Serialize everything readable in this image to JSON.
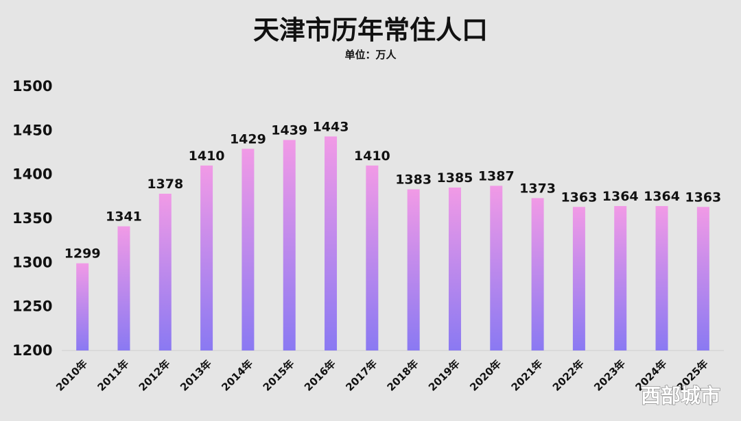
{
  "chart_data": {
    "type": "bar",
    "title": "天津市历年常住人口",
    "subtitle": "单位：万人",
    "categories": [
      "2010年",
      "2011年",
      "2012年",
      "2013年",
      "2014年",
      "2015年",
      "2016年",
      "2017年",
      "2018年",
      "2019年",
      "2020年",
      "2021年",
      "2022年",
      "2023年",
      "2024年",
      "2025年"
    ],
    "values": [
      1299,
      1341,
      1378,
      1410,
      1429,
      1439,
      1443,
      1410,
      1383,
      1385,
      1387,
      1373,
      1363,
      1364,
      1364,
      1363
    ],
    "data_labels": [
      "1299",
      "1341",
      "1378",
      "1410",
      "1429",
      "1439",
      "1443",
      "1410",
      "1383",
      "1385",
      "1387",
      "1373",
      "1363",
      "1364",
      "1364",
      "1363"
    ],
    "ylim": [
      1200,
      1500
    ],
    "yticks": [
      1500,
      1450,
      1400,
      1350,
      1300,
      1250,
      1200
    ],
    "ytick_labels": [
      "1500",
      "1450",
      "1400",
      "1350",
      "1300",
      "1250",
      "1200"
    ],
    "grid": false,
    "legend": "none",
    "colors": {
      "bar_top": "#f19ae6",
      "bar_bottom": "#8a79f2",
      "background": "#e5e5e5"
    }
  },
  "watermark": "西部城市"
}
